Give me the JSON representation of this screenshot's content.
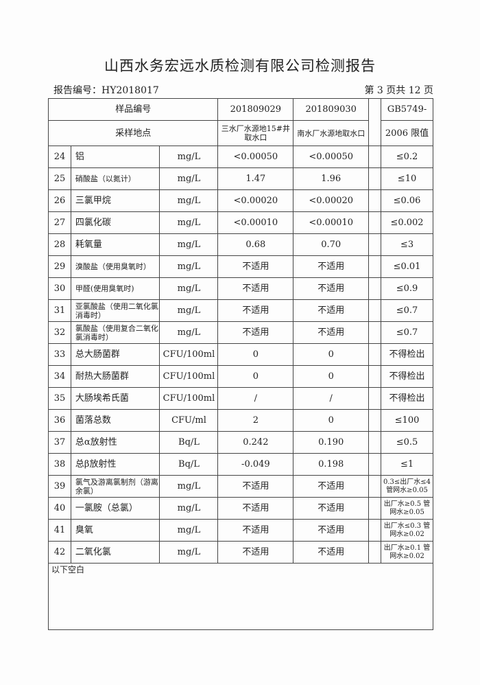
{
  "title": "山西水务宏远水质检测有限公司检测报告",
  "report_no": "报告编号：HY2018017",
  "page_info": "第 3 页共 12 页",
  "header": {
    "sample_no_label": "样品编号",
    "sample_a": "201809029",
    "sample_b": "201809030",
    "site_label": "采样地点",
    "site_a": "三水厂水源地15#井取水口",
    "site_b": "南水厂水源地取水口",
    "limit_label_1": "GB5749-",
    "limit_label_2": "2006 限值"
  },
  "rows": [
    {
      "no": "24",
      "name": "铝",
      "unit": "mg/L",
      "a": "<0.00050",
      "b": "<0.00050",
      "limit": "≤0.2"
    },
    {
      "no": "25",
      "name": "硝酸盐（以氮计）",
      "unit": "mg/L",
      "a": "1.47",
      "b": "1.96",
      "limit": "≤10"
    },
    {
      "no": "26",
      "name": "三氯甲烷",
      "unit": "mg/L",
      "a": "<0.00020",
      "b": "<0.00020",
      "limit": "≤0.06"
    },
    {
      "no": "27",
      "name": "四氯化碳",
      "unit": "mg/L",
      "a": "<0.00010",
      "b": "<0.00010",
      "limit": "≤0.002"
    },
    {
      "no": "28",
      "name": "耗氧量",
      "unit": "mg/L",
      "a": "0.68",
      "b": "0.70",
      "limit": "≤3"
    },
    {
      "no": "29",
      "name": "溴酸盐（使用臭氧时）",
      "unit": "mg/L",
      "a": "不适用",
      "b": "不适用",
      "limit": "≤0.01"
    },
    {
      "no": "30",
      "name": "甲醛(使用臭氧时)",
      "unit": "mg/L",
      "a": "不适用",
      "b": "不适用",
      "limit": "≤0.9"
    },
    {
      "no": "31",
      "name": "亚氯酸盐（使用二氧化氯消毒时）",
      "unit": "mg/L",
      "a": "不适用",
      "b": "不适用",
      "limit": "≤0.7"
    },
    {
      "no": "32",
      "name": "氯酸盐（使用复合二氧化氯消毒时）",
      "unit": "mg/L",
      "a": "不适用",
      "b": "不适用",
      "limit": "≤0.7"
    },
    {
      "no": "33",
      "name": "总大肠菌群",
      "unit": "CFU/100ml",
      "a": "0",
      "b": "0",
      "limit": "不得检出"
    },
    {
      "no": "34",
      "name": "耐热大肠菌群",
      "unit": "CFU/100ml",
      "a": "0",
      "b": "0",
      "limit": "不得检出"
    },
    {
      "no": "35",
      "name": "大肠埃希氏菌",
      "unit": "CFU/100ml",
      "a": "/",
      "b": "/",
      "limit": "不得检出"
    },
    {
      "no": "36",
      "name": "菌落总数",
      "unit": "CFU/ml",
      "a": "2",
      "b": "0",
      "limit": "≤100"
    },
    {
      "no": "37",
      "name": "总α放射性",
      "unit": "Bq/L",
      "a": "0.242",
      "b": "0.190",
      "limit": "≤0.5"
    },
    {
      "no": "38",
      "name": "总β放射性",
      "unit": "Bq/L",
      "a": "-0.049",
      "b": "0.198",
      "limit": "≤1"
    },
    {
      "no": "39",
      "name": "氯气及游离氯制剂（游离余氯）",
      "unit": "mg/L",
      "a": "不适用",
      "b": "不适用",
      "limit": "0.3≤出厂水≤4 管网水≥0.05"
    },
    {
      "no": "40",
      "name": "一氯胺（总氯）",
      "unit": "mg/L",
      "a": "不适用",
      "b": "不适用",
      "limit": "出厂水≥0.5 管网水≥0.05"
    },
    {
      "no": "41",
      "name": "臭氧",
      "unit": "mg/L",
      "a": "不适用",
      "b": "不适用",
      "limit": "出厂水≤0.3 管网水≥0.02"
    },
    {
      "no": "42",
      "name": "二氧化氯",
      "unit": "mg/L",
      "a": "不适用",
      "b": "不适用",
      "limit": "出厂水≥0.1 管网水≥0.02"
    }
  ],
  "footer_note": "以下空白"
}
